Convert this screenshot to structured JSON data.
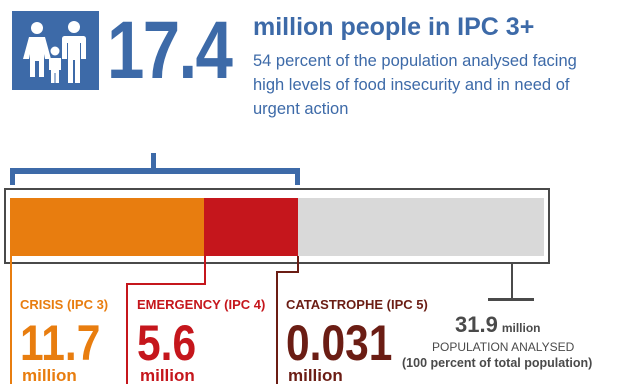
{
  "colors": {
    "brand_blue": "#3d6aa8",
    "crisis": "#e87d0f",
    "emergency": "#c5161c",
    "catastrophe": "#6b1d14",
    "total": "#4a4a4a"
  },
  "header": {
    "icon": "family-icon",
    "big_number": "17.4",
    "headline": "million people in IPC 3+",
    "subtext": "54 percent of the population analysed facing high levels of food insecurity and in need of urgent action"
  },
  "phases": {
    "crisis": {
      "label": "CRISIS (IPC 3)",
      "value": "11.7",
      "unit": "million"
    },
    "emergency": {
      "label": "EMERGENCY (IPC 4)",
      "value": "5.6",
      "unit": "million"
    },
    "catastrophe": {
      "label": "CATASTROPHE (IPC 5)",
      "value": "0.031",
      "unit": "million"
    }
  },
  "total": {
    "value": "31.9",
    "unit": "million",
    "caption": "POPULATION ANALYSED",
    "note": "(100 percent of total population)"
  }
}
